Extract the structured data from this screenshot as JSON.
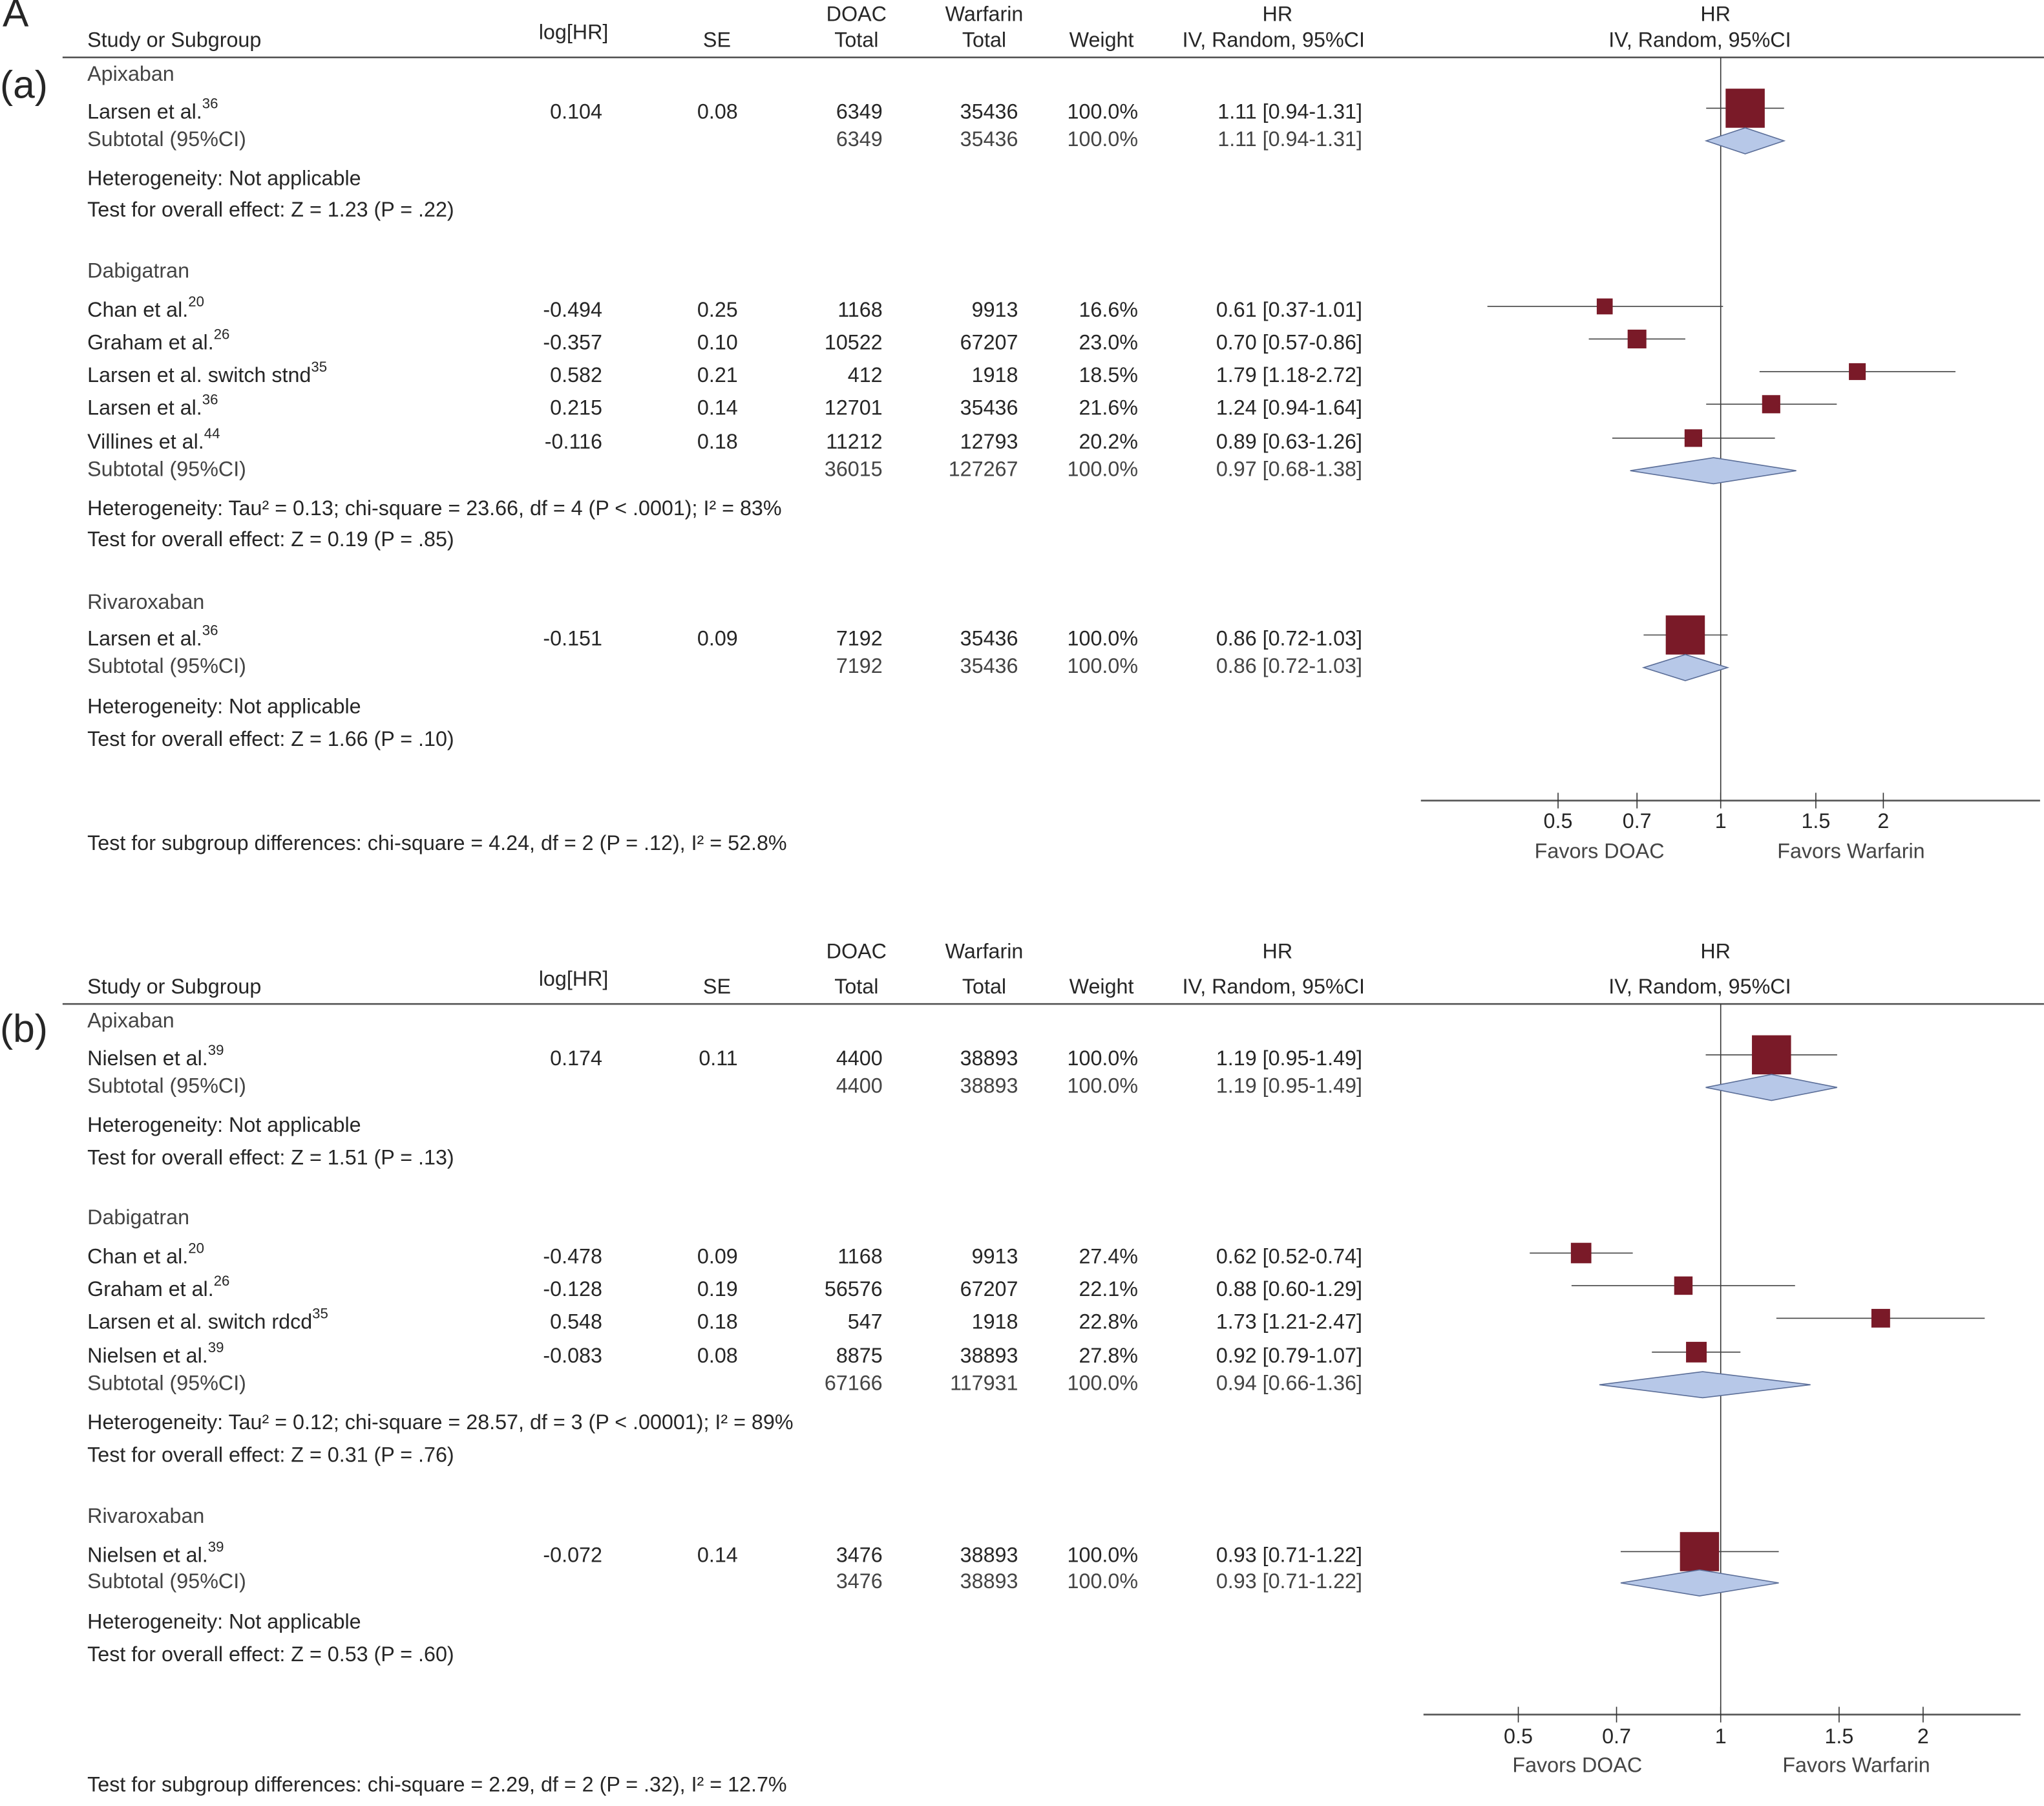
{
  "figure_label": "A",
  "chart_data": {
    "type": "forest",
    "panels": [
      {
        "label": "(a)",
        "headers": {
          "study": "Study or Subgroup",
          "loghr": "log[HR]",
          "se": "SE",
          "doac_top": "DOAC",
          "doac_bottom": "Total",
          "warf_top": "Warfarin",
          "warf_bottom": "Total",
          "weight": "Weight",
          "hr_top": "HR",
          "hr_bottom": "IV, Random, 95%CI",
          "plot_top": "HR",
          "plot_bottom": "IV, Random, 95%CI"
        },
        "xscale": "log",
        "ticks": [
          "0.5",
          "0.7",
          "1",
          "1.5",
          "2"
        ],
        "favors_left": "Favors DOAC",
        "favors_right": "Favors Warfarin",
        "groups": [
          {
            "name": "Apixaban",
            "studies": [
              {
                "name": "Larsen et al.",
                "ref": "36",
                "loghr": "0.104",
                "se": "0.08",
                "doac": "6349",
                "warf": "35436",
                "weight": "100.0%",
                "weight_value": 100,
                "ci": "1.11 [0.94-1.31]",
                "hr": 1.11,
                "lo": 0.94,
                "hi": 1.31
              }
            ],
            "subtotal": {
              "label": "Subtotal (95%CI)",
              "doac": "6349",
              "warf": "35436",
              "weight": "100.0%",
              "ci": "1.11 [0.94-1.31]",
              "hr": 1.11,
              "lo": 0.94,
              "hi": 1.31
            },
            "heterogeneity": "Heterogeneity:  Not applicable",
            "overall": "Test for overall effect: Z = 1.23 (P = .22)"
          },
          {
            "name": "Dabigatran",
            "studies": [
              {
                "name": "Chan et al.",
                "ref": "20",
                "loghr": "-0.494",
                "se": "0.25",
                "doac": "1168",
                "warf": "9913",
                "weight": "16.6%",
                "weight_value": 16.6,
                "ci": "0.61 [0.37-1.01]",
                "hr": 0.61,
                "lo": 0.37,
                "hi": 1.01
              },
              {
                "name": "Graham et al.",
                "ref": "26",
                "loghr": "-0.357",
                "se": "0.10",
                "doac": "10522",
                "warf": "67207",
                "weight": "23.0%",
                "weight_value": 23.0,
                "ci": "0.70 [0.57-0.86]",
                "hr": 0.7,
                "lo": 0.57,
                "hi": 0.86
              },
              {
                "name": "Larsen et al. switch stnd",
                "ref": "35",
                "loghr": "0.582",
                "se": "0.21",
                "doac": "412",
                "warf": "1918",
                "weight": "18.5%",
                "weight_value": 18.5,
                "ci": "1.79 [1.18-2.72]",
                "hr": 1.79,
                "lo": 1.18,
                "hi": 2.72
              },
              {
                "name": "Larsen et al.",
                "ref": "36",
                "loghr": "0.215",
                "se": "0.14",
                "doac": "12701",
                "warf": "35436",
                "weight": "21.6%",
                "weight_value": 21.6,
                "ci": "1.24 [0.94-1.64]",
                "hr": 1.24,
                "lo": 0.94,
                "hi": 1.64
              },
              {
                "name": "Villines et al.",
                "ref": "44",
                "loghr": "-0.116",
                "se": "0.18",
                "doac": "11212",
                "warf": "12793",
                "weight": "20.2%",
                "weight_value": 20.2,
                "ci": "0.89 [0.63-1.26]",
                "hr": 0.89,
                "lo": 0.63,
                "hi": 1.26
              }
            ],
            "subtotal": {
              "label": "Subtotal (95%CI)",
              "doac": "36015",
              "warf": "127267",
              "weight": "100.0%",
              "ci": "0.97 [0.68-1.38]",
              "hr": 0.97,
              "lo": 0.68,
              "hi": 1.38
            },
            "heterogeneity": "Heterogeneity:  Tau² = 0.13; chi-square = 23.66, df = 4 (P < .0001); I² = 83%",
            "overall": "Test for overall effect: Z = 0.19 (P = .85)"
          },
          {
            "name": "Rivaroxaban",
            "studies": [
              {
                "name": "Larsen et al.",
                "ref": "36",
                "loghr": "-0.151",
                "se": "0.09",
                "doac": "7192",
                "warf": "35436",
                "weight": "100.0%",
                "weight_value": 100,
                "ci": "0.86 [0.72-1.03]",
                "hr": 0.86,
                "lo": 0.72,
                "hi": 1.03
              }
            ],
            "subtotal": {
              "label": "Subtotal (95%CI)",
              "doac": "7192",
              "warf": "35436",
              "weight": "100.0%",
              "ci": "0.86 [0.72-1.03]",
              "hr": 0.86,
              "lo": 0.72,
              "hi": 1.03
            },
            "heterogeneity": "Heterogeneity:  Not applicable",
            "overall": "Test for overall effect: Z = 1.66 (P = .10)"
          }
        ],
        "subgroup_test": "Test for subgroup differences: chi-square = 4.24, df = 2 (P = .12), I²     = 52.8%"
      },
      {
        "label": "(b)",
        "headers": {
          "study": "Study or Subgroup",
          "loghr": "log[HR]",
          "se": "SE",
          "doac_top": "DOAC",
          "doac_bottom": "Total",
          "warf_top": "Warfarin",
          "warf_bottom": "Total",
          "weight": "Weight",
          "hr_top": "HR",
          "hr_bottom": "IV, Random, 95%CI",
          "plot_top": "HR",
          "plot_bottom": "IV, Random, 95%CI"
        },
        "xscale": "log",
        "ticks": [
          "0.5",
          "0.7",
          "1",
          "1.5",
          "2"
        ],
        "favors_left": "Favors DOAC",
        "favors_right": "Favors Warfarin",
        "groups": [
          {
            "name": "Apixaban",
            "studies": [
              {
                "name": "Nielsen et al.",
                "ref": "39",
                "loghr": "0.174",
                "se": "0.11",
                "doac": "4400",
                "warf": "38893",
                "weight": "100.0%",
                "weight_value": 100,
                "ci": "1.19 [0.95-1.49]",
                "hr": 1.19,
                "lo": 0.95,
                "hi": 1.49
              }
            ],
            "subtotal": {
              "label": "Subtotal (95%CI)",
              "doac": "4400",
              "warf": "38893",
              "weight": "100.0%",
              "ci": "1.19 [0.95-1.49]",
              "hr": 1.19,
              "lo": 0.95,
              "hi": 1.49
            },
            "heterogeneity": "Heterogeneity:  Not applicable",
            "overall": "Test for overall effect: Z = 1.51 (P = .13)"
          },
          {
            "name": "Dabigatran",
            "studies": [
              {
                "name": "Chan et al.",
                "ref": "20",
                "loghr": "-0.478",
                "se": "0.09",
                "doac": "1168",
                "warf": "9913",
                "weight": "27.4%",
                "weight_value": 27.4,
                "ci": "0.62 [0.52-0.74]",
                "hr": 0.62,
                "lo": 0.52,
                "hi": 0.74
              },
              {
                "name": "Graham et al.",
                "ref": "26",
                "loghr": "-0.128",
                "se": "0.19",
                "doac": "56576",
                "warf": "67207",
                "weight": "22.1%",
                "weight_value": 22.1,
                "ci": "0.88 [0.60-1.29]",
                "hr": 0.88,
                "lo": 0.6,
                "hi": 1.29
              },
              {
                "name": "Larsen et al. switch rdcd",
                "ref": "35",
                "loghr": "0.548",
                "se": "0.18",
                "doac": "547",
                "warf": "1918",
                "weight": "22.8%",
                "weight_value": 22.8,
                "ci": "1.73 [1.21-2.47]",
                "hr": 1.73,
                "lo": 1.21,
                "hi": 2.47
              },
              {
                "name": "Nielsen et al.",
                "ref": "39",
                "loghr": "-0.083",
                "se": "0.08",
                "doac": "8875",
                "warf": "38893",
                "weight": "27.8%",
                "weight_value": 27.8,
                "ci": "0.92 [0.79-1.07]",
                "hr": 0.92,
                "lo": 0.79,
                "hi": 1.07
              }
            ],
            "subtotal": {
              "label": "Subtotal (95%CI)",
              "doac": "67166",
              "warf": "117931",
              "weight": "100.0%",
              "ci": "0.94 [0.66-1.36]",
              "hr": 0.94,
              "lo": 0.66,
              "hi": 1.36
            },
            "heterogeneity": "Heterogeneity:  Tau² = 0.12; chi-square = 28.57, df = 3 (P < .00001); I² = 89%",
            "overall": "Test for overall effect: Z = 0.31 (P = .76)"
          },
          {
            "name": "Rivaroxaban",
            "studies": [
              {
                "name": "Nielsen et al.",
                "ref": "39",
                "loghr": "-0.072",
                "se": "0.14",
                "doac": "3476",
                "warf": "38893",
                "weight": "100.0%",
                "weight_value": 100,
                "ci": "0.93 [0.71-1.22]",
                "hr": 0.93,
                "lo": 0.71,
                "hi": 1.22
              }
            ],
            "subtotal": {
              "label": "Subtotal (95%CI)",
              "doac": "3476",
              "warf": "38893",
              "weight": "100.0%",
              "ci": "0.93 [0.71-1.22]",
              "hr": 0.93,
              "lo": 0.71,
              "hi": 1.22
            },
            "heterogeneity": "Heterogeneity:  Not applicable",
            "overall": "Test for overall effect: Z = 0.53 (P = .60)"
          }
        ],
        "subgroup_test": "Test for subgroup differences: chi-square = 2.29, df = 2 (P = .32), I² = 12.7%"
      }
    ],
    "colors": {
      "square": "#7a1a28",
      "diamond_fill": "#b7c8e8",
      "diamond_stroke": "#5b6e98",
      "axis": "#555555"
    }
  }
}
